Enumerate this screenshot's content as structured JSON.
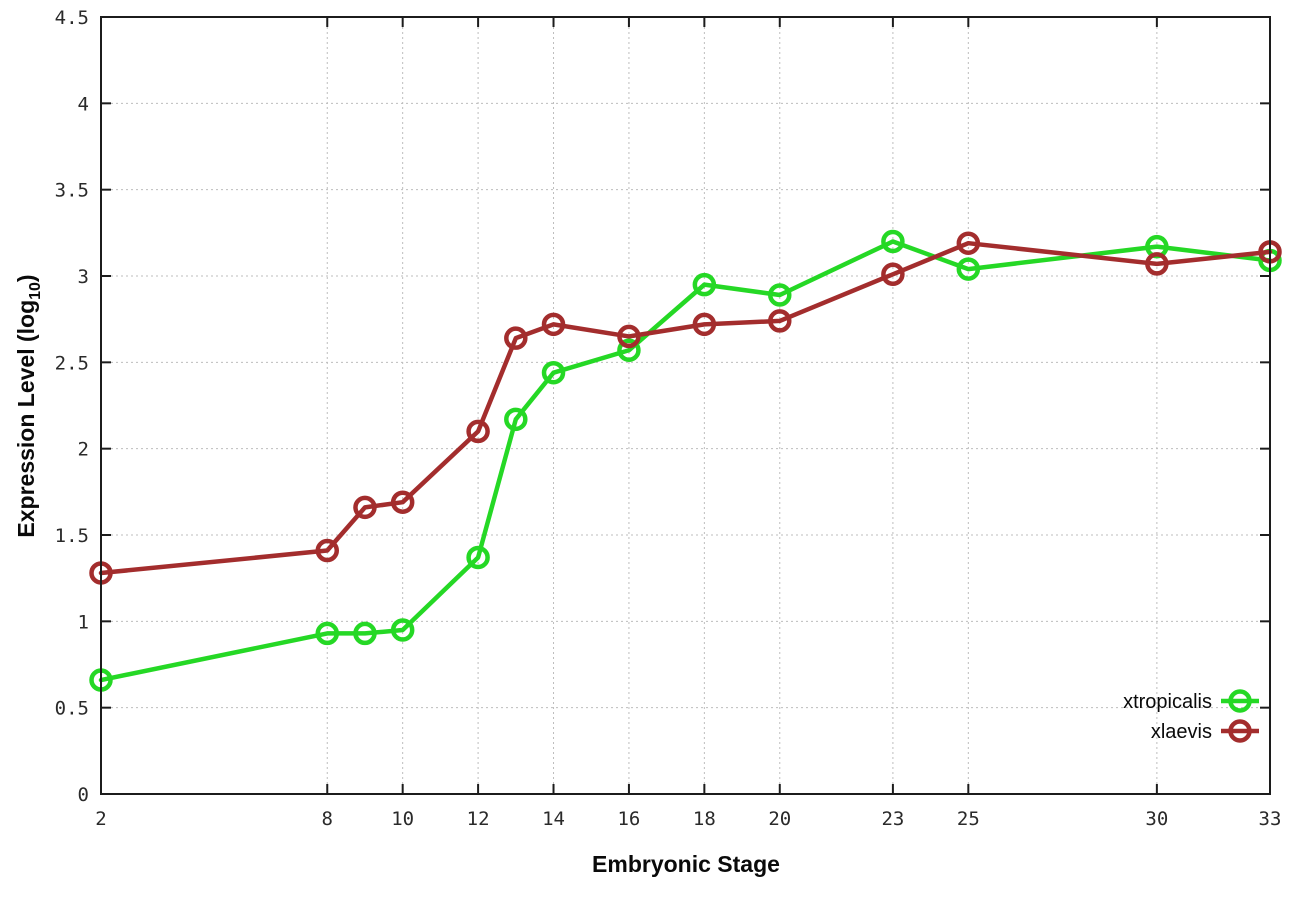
{
  "chart_data": {
    "type": "line",
    "xlabel": "Embryonic Stage",
    "ylabel_parts": {
      "main": "Expression Level (log",
      "sub": "10",
      "tail": ")"
    },
    "x": [
      2,
      8,
      9,
      10,
      12,
      13,
      14,
      16,
      18,
      20,
      23,
      25,
      30,
      33
    ],
    "series": [
      {
        "name": "xtropicalis",
        "color": "#25d825",
        "values": [
          0.66,
          0.93,
          0.93,
          0.95,
          1.37,
          2.17,
          2.44,
          2.57,
          2.95,
          2.89,
          3.2,
          3.04,
          3.17,
          3.09
        ]
      },
      {
        "name": "xlaevis",
        "color": "#a32d2d",
        "values": [
          1.28,
          1.41,
          1.66,
          1.69,
          2.1,
          2.64,
          2.72,
          2.65,
          2.72,
          2.74,
          3.01,
          3.19,
          3.07,
          3.14
        ]
      }
    ],
    "xlim": [
      2,
      33
    ],
    "ylim": [
      0,
      4.5
    ],
    "xticks": [
      2,
      8,
      10,
      12,
      14,
      16,
      18,
      20,
      23,
      25,
      30,
      33
    ],
    "xtick_labels": [
      "2",
      "8",
      "10",
      "12",
      "14",
      "16",
      "18",
      "20",
      "23",
      "25",
      "30",
      "33"
    ],
    "yticks": [
      0,
      0.5,
      1,
      1.5,
      2,
      2.5,
      3,
      3.5,
      4,
      4.5
    ],
    "ytick_labels": [
      "0",
      "0.5",
      "1",
      "1.5",
      "2",
      "2.5",
      "3",
      "3.5",
      "4",
      "4.5"
    ],
    "grid": true,
    "grid_color": "#bdbdbd",
    "border_color": "#1c1c1c",
    "legend_position": "bottom-right"
  }
}
